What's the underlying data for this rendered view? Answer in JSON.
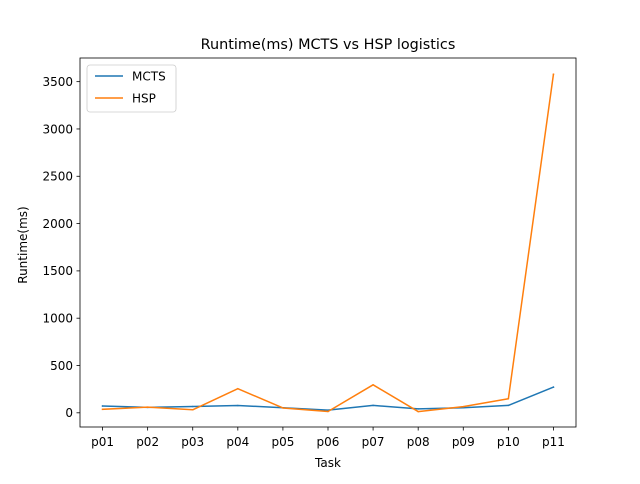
{
  "chart_data": {
    "type": "line",
    "title": "Runtime(ms) MCTS vs HSP logistics",
    "xlabel": "Task",
    "ylabel": "Runtime(ms)",
    "categories": [
      "p01",
      "p02",
      "p03",
      "p04",
      "p05",
      "p06",
      "p07",
      "p08",
      "p09",
      "p10",
      "p11"
    ],
    "ylim": [
      -150,
      3750
    ],
    "yticks": [
      0,
      500,
      1000,
      1500,
      2000,
      2500,
      3000,
      3500
    ],
    "grid": false,
    "legend_position": "upper-left",
    "series": [
      {
        "name": "MCTS",
        "color": "#1f77b4",
        "values": [
          72,
          57,
          67,
          77,
          54,
          28,
          78,
          41,
          54,
          78,
          272
        ]
      },
      {
        "name": "HSP",
        "color": "#ff7f0e",
        "values": [
          37,
          60,
          32,
          255,
          51,
          14,
          296,
          13,
          65,
          148,
          3578
        ]
      }
    ]
  }
}
